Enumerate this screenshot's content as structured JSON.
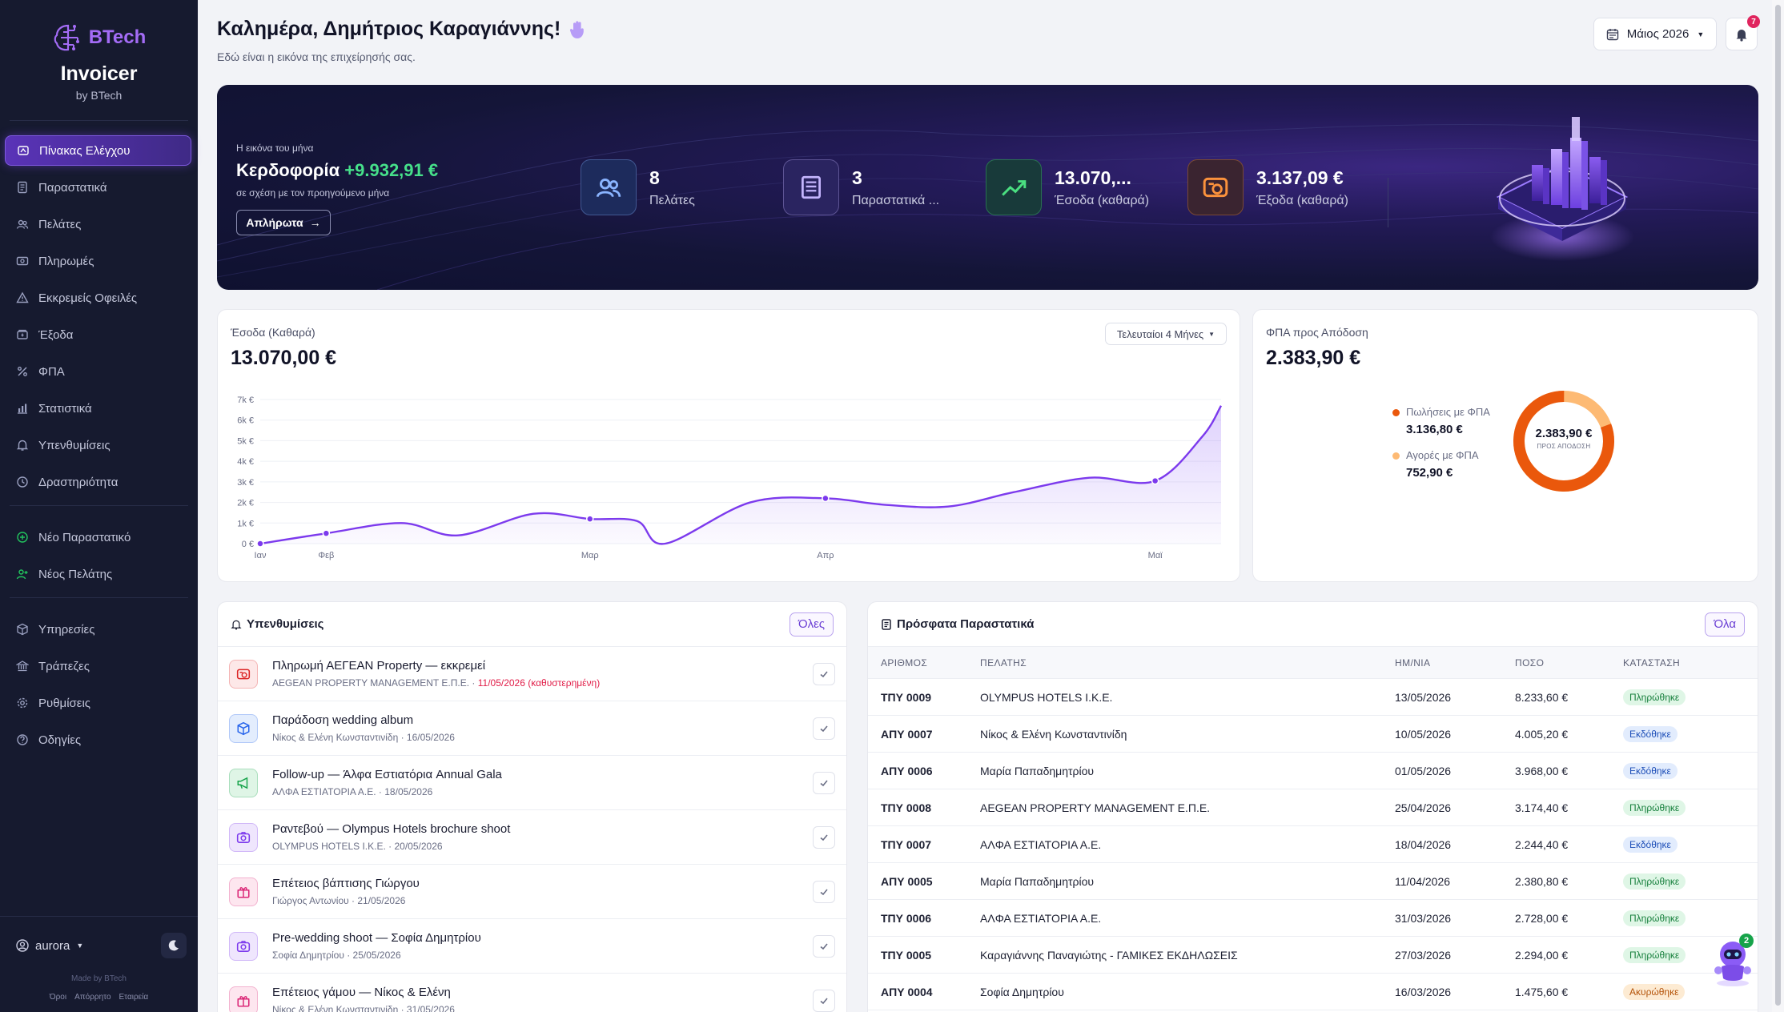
{
  "brand": {
    "logo_text": "BTech",
    "app_name": "Invoicer",
    "by": "by BTech"
  },
  "nav": {
    "main": [
      {
        "label": "Πίνακας Ελέγχου",
        "icon": "dashboard-icon",
        "active": true
      },
      {
        "label": "Παραστατικά",
        "icon": "document-icon"
      },
      {
        "label": "Πελάτες",
        "icon": "users-icon"
      },
      {
        "label": "Πληρωμές",
        "icon": "payments-icon"
      },
      {
        "label": "Εκκρεμείς Οφειλές",
        "icon": "warning-icon"
      },
      {
        "label": "Έξοδα",
        "icon": "expenses-icon"
      },
      {
        "label": "ΦΠΑ",
        "icon": "percent-icon"
      },
      {
        "label": "Στατιστικά",
        "icon": "stats-icon"
      },
      {
        "label": "Υπενθυμίσεις",
        "icon": "bell-icon"
      },
      {
        "label": "Δραστηριότητα",
        "icon": "clock-icon"
      }
    ],
    "actions": [
      {
        "label": "Νέο Παραστατικό",
        "icon": "plus-circle-icon"
      },
      {
        "label": "Νέος Πελάτης",
        "icon": "user-plus-icon"
      }
    ],
    "settings": [
      {
        "label": "Υπηρεσίες",
        "icon": "box-icon"
      },
      {
        "label": "Τράπεζες",
        "icon": "bank-icon"
      },
      {
        "label": "Ρυθμίσεις",
        "icon": "gear-icon"
      },
      {
        "label": "Οδηγίες",
        "icon": "help-icon"
      }
    ]
  },
  "footer": {
    "user": "aurora",
    "made_by": "Made by BTech",
    "links": [
      "Όροι",
      "Απόρρητο",
      "Εταιρεία"
    ]
  },
  "header": {
    "greeting": "Καλημέρα, Δημήτριος Καραγιάννης!",
    "subtitle": "Εδώ είναι η εικόνα της επιχείρησής σας.",
    "month": "Μάιος 2026",
    "notifications": "7"
  },
  "hero": {
    "kicker": "Η εικόνα του μήνα",
    "title": "Κερδοφορία",
    "profit": "+9.932,91 €",
    "sub": "σε σχέση με τον προηγούμενο μήνα",
    "button": "Απλήρωτα",
    "stats": [
      {
        "value": "8",
        "label": "Πελάτες",
        "icon": "users-icon",
        "color": "#8ab4ff"
      },
      {
        "value": "3",
        "label": "Παραστατικά ...",
        "icon": "invoice-icon",
        "color": "#c4b5fd"
      },
      {
        "value": "13.070,...",
        "label": "Έσοδα (καθαρά)",
        "icon": "trend-up-icon",
        "color": "#4ade80"
      },
      {
        "value": "3.137,09 €",
        "label": "Έξοδα (καθαρά)",
        "icon": "money-icon",
        "color": "#fb923c"
      }
    ]
  },
  "revenue": {
    "label": "Έσοδα (Καθαρά)",
    "value": "13.070,00 €",
    "range": "Τελευταίοι 4 Μήνες"
  },
  "chart_data": {
    "type": "area",
    "x_labels": [
      "Ιαν",
      "Φεβ",
      "Μαρ",
      "Απρ",
      "Μαϊ"
    ],
    "y_ticks": [
      "0 €",
      "1k €",
      "2k €",
      "3k €",
      "4k €",
      "5k €",
      "6k €",
      "7k €"
    ],
    "ylim": [
      0,
      7000
    ],
    "x": [
      0,
      0.7,
      1.5,
      2.1,
      2.9,
      3.5,
      4.0,
      4.3,
      5.2,
      6.0,
      6.6,
      7.3,
      8.0,
      8.8,
      9.5,
      10.0,
      10.2
    ],
    "y": [
      0,
      500,
      1000,
      400,
      1450,
      1200,
      1100,
      0,
      2000,
      2200,
      1900,
      1800,
      2500,
      3200,
      3050,
      5200,
      6700
    ],
    "markers": [
      0,
      1,
      5,
      9,
      14
    ]
  },
  "vat": {
    "label": "ΦΠΑ προς Απόδοση",
    "value": "2.383,90 €",
    "center_value": "2.383,90 €",
    "center_label": "ΠΡΟΣ ΑΠΟΔΟΣΗ",
    "sales_label": "Πωλήσεις με ΦΠΑ",
    "sales_value": "3.136,80 €",
    "sales_color": "#ea580c",
    "purch_label": "Αγορές με ΦΠΑ",
    "purch_value": "752,90 €",
    "purch_color": "#fdba74",
    "sales_amount": 3136.8,
    "purch_amount": 752.9
  },
  "reminders": {
    "title": "Υπενθυμίσεις",
    "all": "Όλες",
    "items": [
      {
        "title": "Πληρωμή ΑΕΓΕΑΝ Property — εκκρεμεί",
        "sub": "AEGEAN PROPERTY MANAGEMENT Ε.Π.Ε. · ",
        "late": "11/05/2026 (καθυστερημένη)",
        "icon": "money-icon",
        "bg": "#fde8e8",
        "fg": "#dc2626"
      },
      {
        "title": "Παράδοση wedding album",
        "sub": "Νίκος & Ελένη Κωνσταντινίδη · 16/05/2026",
        "late": "",
        "icon": "box-icon",
        "bg": "#e3edfd",
        "fg": "#2563eb"
      },
      {
        "title": "Follow-up — Άλφα Εστιατόρια Annual Gala",
        "sub": "ΑΛΦΑ ΕΣΤΙΑΤΟΡΙΑ Α.Ε. · 18/05/2026",
        "late": "",
        "icon": "megaphone-icon",
        "bg": "#dff5e6",
        "fg": "#16a34a"
      },
      {
        "title": "Ραντεβού — Olympus Hotels brochure shoot",
        "sub": "OLYMPUS HOTELS I.K.E. · 20/05/2026",
        "late": "",
        "icon": "camera-icon",
        "bg": "#efe6fd",
        "fg": "#7c3aed"
      },
      {
        "title": "Επέτειος βάπτισης Γιώργου",
        "sub": "Γιώργος Αντωνίου · 21/05/2026",
        "late": "",
        "icon": "gift-icon",
        "bg": "#fde6ef",
        "fg": "#db2777"
      },
      {
        "title": "Pre-wedding shoot — Σοφία Δημητρίου",
        "sub": "Σοφία Δημητρίου · 25/05/2026",
        "late": "",
        "icon": "camera-icon",
        "bg": "#efe6fd",
        "fg": "#7c3aed"
      },
      {
        "title": "Επέτειος γάμου — Νίκος & Ελένη",
        "sub": "Νίκος & Ελένη Κωνσταντινίδη · 31/05/2026",
        "late": "",
        "icon": "gift-icon",
        "bg": "#fde6ef",
        "fg": "#db2777"
      }
    ]
  },
  "invoices": {
    "title": "Πρόσφατα Παραστατικά",
    "all": "Όλα",
    "columns": [
      "ΑΡΙΘΜΟΣ",
      "ΠΕΛΑΤΗΣ",
      "ΗΜ/ΝΙΑ",
      "ΠΟΣΟ",
      "ΚΑΤΑΣΤΑΣΗ"
    ],
    "rows": [
      {
        "num": "ΤΠΥ 0009",
        "client": "OLYMPUS HOTELS I.K.E.",
        "date": "13/05/2026",
        "amount": "8.233,60 €",
        "status": "Πληρώθηκε",
        "kind": "paid"
      },
      {
        "num": "ΑΠΥ 0007",
        "client": "Νίκος & Ελένη Κωνσταντινίδη",
        "date": "10/05/2026",
        "amount": "4.005,20 €",
        "status": "Εκδόθηκε",
        "kind": "iss"
      },
      {
        "num": "ΑΠΥ 0006",
        "client": "Μαρία Παπαδημητρίου",
        "date": "01/05/2026",
        "amount": "3.968,00 €",
        "status": "Εκδόθηκε",
        "kind": "iss"
      },
      {
        "num": "ΤΠΥ 0008",
        "client": "AEGEAN PROPERTY MANAGEMENT Ε.Π.Ε.",
        "date": "25/04/2026",
        "amount": "3.174,40 €",
        "status": "Πληρώθηκε",
        "kind": "paid"
      },
      {
        "num": "ΤΠΥ 0007",
        "client": "ΑΛΦΑ ΕΣΤΙΑΤΟΡΙΑ Α.Ε.",
        "date": "18/04/2026",
        "amount": "2.244,40 €",
        "status": "Εκδόθηκε",
        "kind": "iss"
      },
      {
        "num": "ΑΠΥ 0005",
        "client": "Μαρία Παπαδημητρίου",
        "date": "11/04/2026",
        "amount": "2.380,80 €",
        "status": "Πληρώθηκε",
        "kind": "paid"
      },
      {
        "num": "ΤΠΥ 0006",
        "client": "ΑΛΦΑ ΕΣΤΙΑΤΟΡΙΑ Α.Ε.",
        "date": "31/03/2026",
        "amount": "2.728,00 €",
        "status": "Πληρώθηκε",
        "kind": "paid"
      },
      {
        "num": "ΤΠΥ 0005",
        "client": "Καραγιάννης Παναγιώτης - ΓΑΜΙΚΕΣ ΕΚΔΗΛΩΣΕΙΣ",
        "date": "27/03/2026",
        "amount": "2.294,00 €",
        "status": "Πληρώθηκε",
        "kind": "paid"
      },
      {
        "num": "ΑΠΥ 0004",
        "client": "Σοφία Δημητρίου",
        "date": "16/03/2026",
        "amount": "1.475,60 €",
        "status": "Ακυρώθηκε",
        "kind": "can"
      }
    ]
  },
  "assistant": {
    "badge": "2"
  }
}
